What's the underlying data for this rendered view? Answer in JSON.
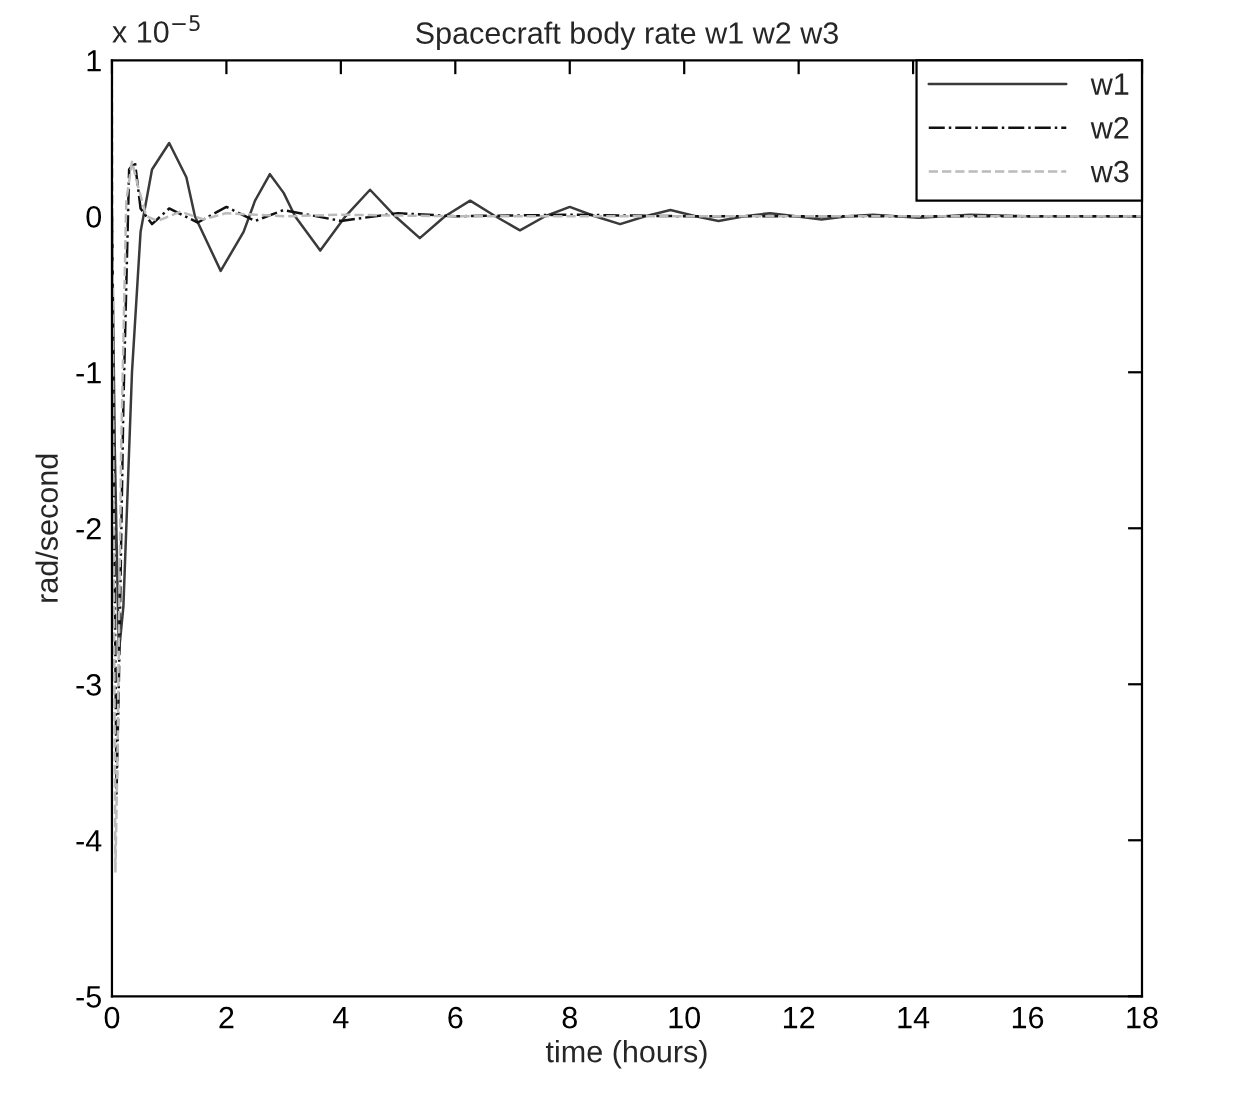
{
  "chart_data": {
    "type": "line",
    "title": "Spacecraft body rate w1 w2 w3",
    "xlabel": "time (hours)",
    "ylabel": "rad/second",
    "annotations": [
      "x 10$^{−5}$"
    ],
    "xlim": [
      0,
      18
    ],
    "xticks": [
      0,
      2,
      4,
      6,
      8,
      10,
      12,
      14,
      16,
      18
    ],
    "ylim": [
      -5,
      1
    ],
    "yticks": [
      -5,
      -4,
      -3,
      -2,
      -1,
      0,
      1
    ],
    "grid": false,
    "legend": "top right",
    "series": [
      {
        "name": "w1",
        "color": "#3a3a3a",
        "line_style": "solid",
        "x": [
          0,
          0.05,
          0.12,
          0.2,
          0.35,
          0.5,
          0.7,
          1.0,
          1.3,
          1.45,
          1.9,
          2.3,
          2.5,
          2.76,
          3.0,
          3.2,
          3.64,
          4.08,
          4.51,
          4.95,
          5.38,
          5.82,
          6.26,
          6.7,
          7.13,
          7.57,
          8.0,
          8.44,
          8.88,
          9.32,
          9.76,
          10.2,
          10.6,
          11.05,
          11.5,
          11.95,
          12.4,
          12.85,
          13.3,
          13.7,
          14.1,
          14.55,
          15.0,
          16.0,
          18.0
        ],
        "values": [
          0,
          -1.5,
          -2.8,
          -2.5,
          -1.0,
          -0.1,
          0.3,
          0.47,
          0.25,
          0,
          -0.35,
          -0.1,
          0.1,
          0.27,
          0.15,
          0,
          -0.22,
          0,
          0.17,
          0,
          -0.14,
          0,
          0.1,
          0,
          -0.09,
          0,
          0.06,
          0,
          -0.05,
          0,
          0.04,
          0,
          -0.03,
          0,
          0.02,
          0,
          -0.02,
          0,
          0.01,
          0,
          -0.01,
          0,
          0.01,
          0,
          0
        ]
      },
      {
        "name": "w2",
        "color": "#111111",
        "line_style": "dashdot",
        "x": [
          0,
          0.04,
          0.08,
          0.12,
          0.2,
          0.3,
          0.4,
          0.5,
          0.7,
          1.0,
          1.5,
          2.0,
          2.5,
          3.0,
          4.0,
          5.0,
          6.0,
          8.0,
          10.0,
          12.0,
          14.0,
          18.0
        ],
        "values": [
          0,
          -2.0,
          -3.7,
          -3.0,
          -1.2,
          0.3,
          0.35,
          0.05,
          -0.05,
          0.05,
          -0.04,
          0.06,
          -0.03,
          0.04,
          -0.03,
          0.02,
          0,
          0.01,
          0,
          0,
          0,
          0
        ]
      },
      {
        "name": "w3",
        "color": "#bbbbbb",
        "line_style": "dashed",
        "x": [
          0,
          0.03,
          0.06,
          0.1,
          0.16,
          0.25,
          0.35,
          0.45,
          0.6,
          0.8,
          1.2,
          1.6,
          2.0,
          3.0,
          4.0,
          6.0,
          8.0,
          12.0,
          18.0
        ],
        "values": [
          0.9,
          -2.0,
          -4.2,
          -3.4,
          -1.5,
          0.1,
          0.35,
          0.2,
          0,
          -0.03,
          0.03,
          -0.02,
          0.02,
          0,
          0.01,
          0,
          0,
          0,
          0
        ]
      }
    ]
  }
}
